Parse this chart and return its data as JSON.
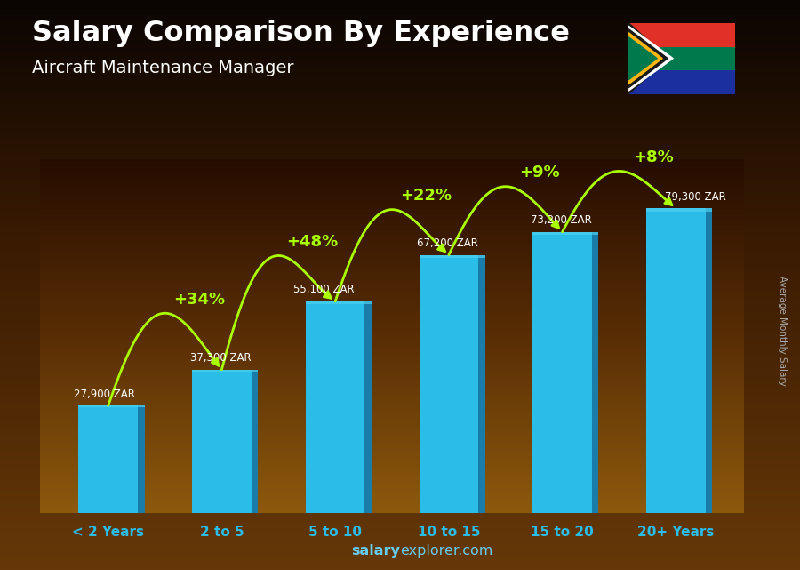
{
  "title": "Salary Comparison By Experience",
  "subtitle": "Aircraft Maintenance Manager",
  "categories": [
    "< 2 Years",
    "2 to 5",
    "5 to 10",
    "10 to 15",
    "15 to 20",
    "20+ Years"
  ],
  "values": [
    27900,
    37300,
    55100,
    67200,
    73200,
    79300
  ],
  "value_labels": [
    "27,900 ZAR",
    "37,300 ZAR",
    "55,100 ZAR",
    "67,200 ZAR",
    "73,200 ZAR",
    "79,300 ZAR"
  ],
  "pct_labels": [
    "+34%",
    "+48%",
    "+22%",
    "+9%",
    "+8%"
  ],
  "bar_color_main": "#29bde8",
  "bar_color_side": "#1a7ca8",
  "bar_color_top": "#4dd0f0",
  "pct_color": "#aaff00",
  "value_label_color": "#ffffff",
  "title_color": "#ffffff",
  "subtitle_color": "#ffffff",
  "xlabel_color": "#29bde8",
  "watermark_color": "#66ccee",
  "right_label_color": "#aaaaaa",
  "watermark": "salaryexplorer.com",
  "right_label": "Average Monthly Salary",
  "ylim": [
    0,
    92000
  ],
  "bar_width": 0.52,
  "n_bars": 6
}
